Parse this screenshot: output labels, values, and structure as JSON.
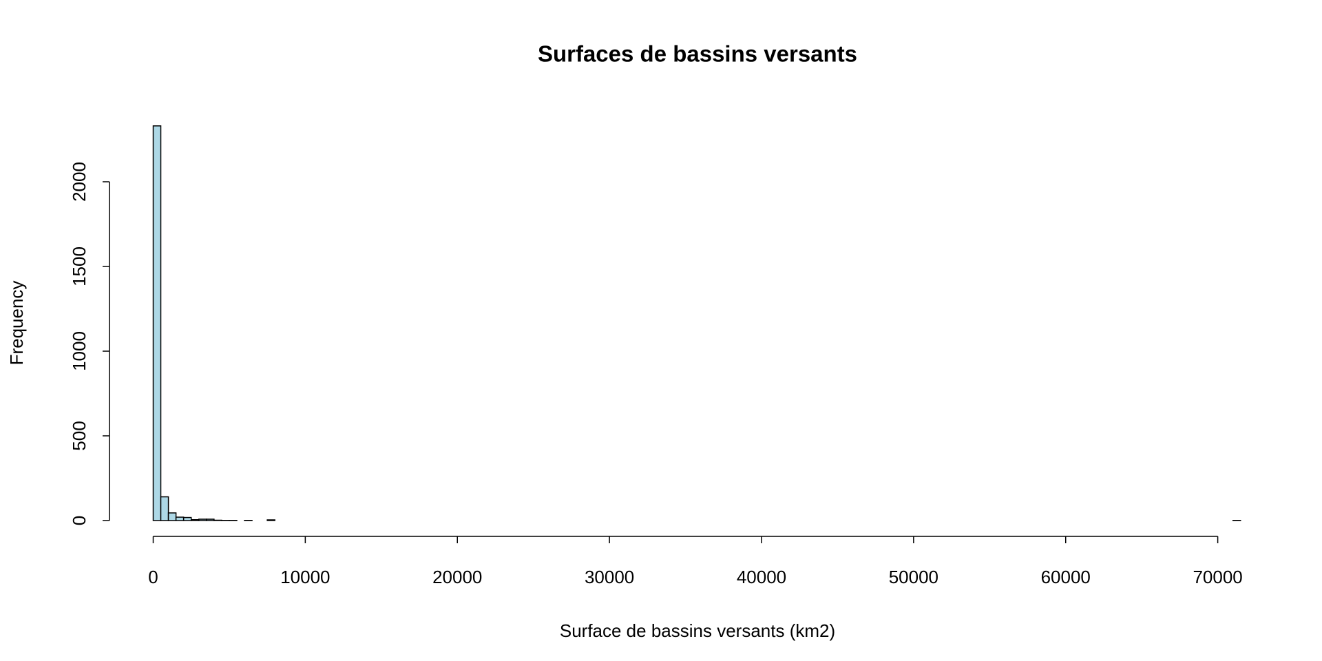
{
  "chart_data": {
    "type": "histogram",
    "title": "Surfaces de bassins versants",
    "x_label": "Surface de bassins versants (km2)",
    "y_label": "Frequency",
    "color": "#add8e6",
    "bins": [
      0,
      500,
      1000,
      1500,
      2000,
      2500,
      3000,
      3500,
      4000,
      4500,
      5000,
      5500,
      6000,
      6500,
      7000,
      7500,
      8000,
      8500,
      9000,
      9500,
      10000,
      10500,
      11000,
      11500,
      12000,
      12500,
      13000,
      13500,
      14000,
      14500,
      15000,
      15500,
      16000,
      16500,
      17000,
      17500,
      18000,
      18500,
      19000,
      19500,
      20000,
      20500,
      21000,
      21500,
      22000,
      22500,
      23000,
      23500,
      24000,
      24500,
      25000,
      25500,
      26000,
      26500,
      27000,
      27500,
      28000,
      28500,
      29000,
      29500,
      30000,
      30500,
      31000,
      31500,
      32000,
      32500,
      33000,
      33500,
      34000,
      34500,
      35000,
      35500,
      36000,
      36500,
      37000,
      37500,
      38000,
      38500,
      39000,
      39500,
      40000,
      40500,
      41000,
      41500,
      42000,
      42500,
      43000,
      43500,
      44000,
      44500,
      45000,
      45500,
      46000,
      46500,
      47000,
      47500,
      48000,
      48500,
      49000,
      49500,
      50000,
      50500,
      51000,
      51500,
      52000,
      52500,
      53000,
      53500,
      54000,
      54500,
      55000,
      55500,
      56000,
      56500,
      57000,
      57500,
      58000,
      58500,
      59000,
      59500,
      60000,
      60500,
      61000,
      61500,
      62000,
      62500,
      63000,
      63500,
      64000,
      64500,
      65000,
      65500,
      66000,
      66500,
      67000,
      67500,
      68000,
      68500,
      69000,
      69500,
      70000,
      70500,
      71000,
      71500
    ],
    "values": [
      2330,
      140,
      45,
      20,
      18,
      5,
      8,
      8,
      2,
      1,
      1,
      0,
      1,
      0,
      0,
      4,
      0,
      0,
      0,
      0,
      0,
      0,
      0,
      0,
      0,
      0,
      0,
      0,
      0,
      0,
      0,
      0,
      0,
      0,
      0,
      0,
      0,
      0,
      0,
      0,
      0,
      0,
      0,
      0,
      0,
      0,
      0,
      0,
      0,
      0,
      0,
      0,
      0,
      0,
      0,
      0,
      0,
      0,
      0,
      0,
      0,
      0,
      0,
      0,
      0,
      0,
      0,
      0,
      0,
      0,
      0,
      0,
      0,
      0,
      0,
      0,
      0,
      0,
      0,
      0,
      0,
      0,
      0,
      0,
      0,
      0,
      0,
      0,
      0,
      0,
      0,
      0,
      0,
      0,
      0,
      0,
      0,
      0,
      0,
      0,
      0,
      0,
      0,
      0,
      0,
      0,
      0,
      0,
      0,
      0,
      0,
      0,
      0,
      0,
      0,
      0,
      0,
      0,
      0,
      0,
      0,
      0,
      0,
      0,
      0,
      0,
      0,
      0,
      0,
      0,
      0,
      0,
      0,
      0,
      0,
      0,
      0,
      0,
      0,
      0,
      0,
      0,
      1
    ],
    "xlim": [
      0,
      71500
    ],
    "ylim": [
      0,
      2330
    ],
    "xticks": [
      0,
      10000,
      20000,
      30000,
      40000,
      50000,
      60000,
      70000
    ],
    "yticks": [
      0,
      500,
      1000,
      1500,
      2000
    ]
  }
}
